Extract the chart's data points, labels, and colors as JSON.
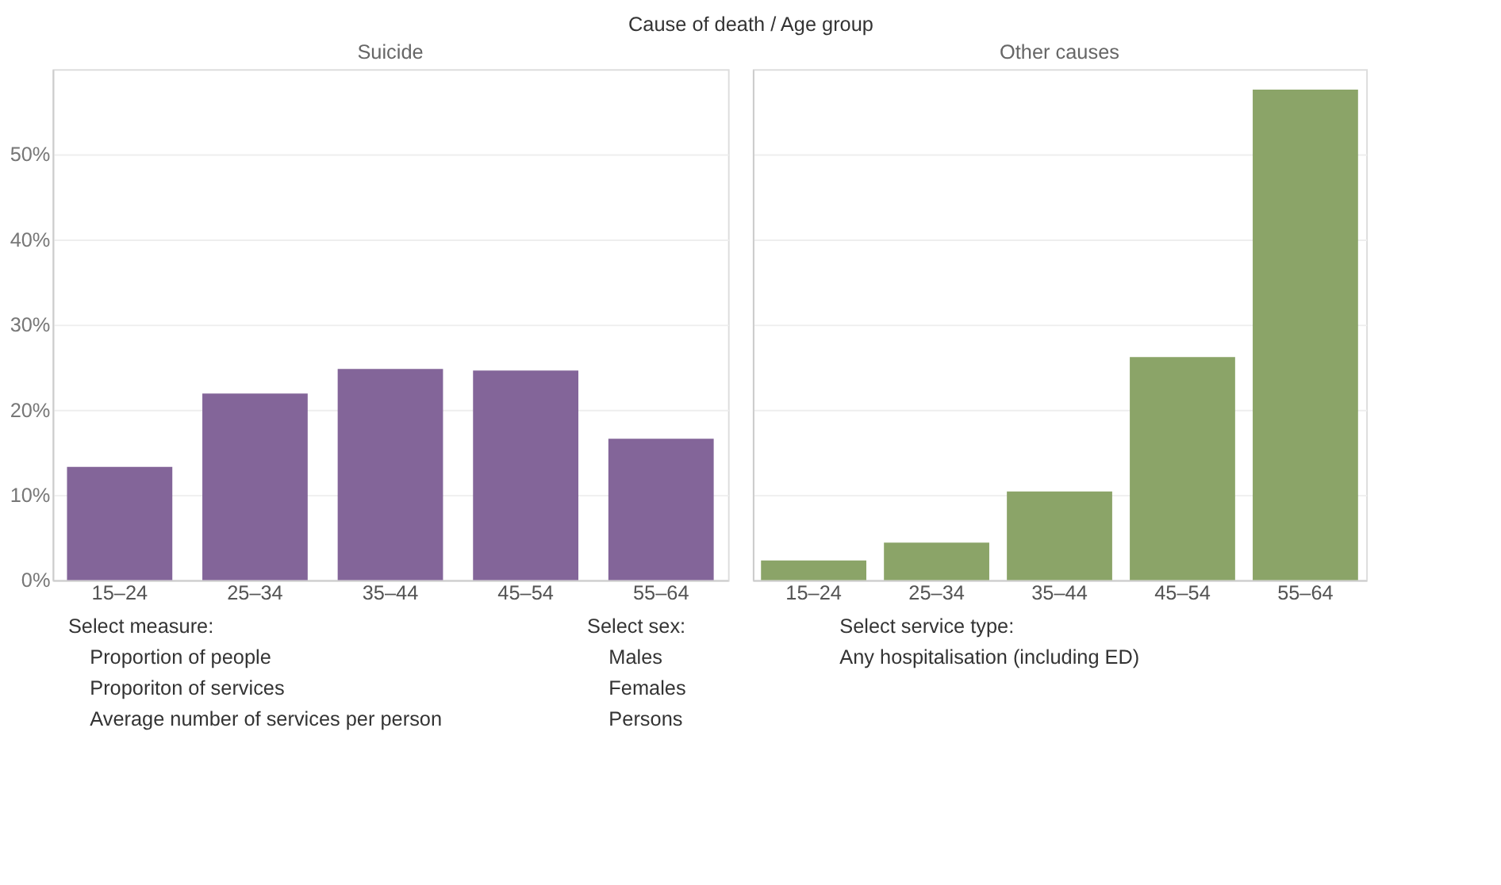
{
  "chart_data": [
    {
      "type": "bar",
      "title": "Suicide",
      "categories": [
        "15–24",
        "25–34",
        "35–44",
        "45–54",
        "55–64"
      ],
      "values": [
        13.3,
        21.9,
        24.8,
        24.6,
        16.6
      ],
      "color": "#836599",
      "ylim": [
        0,
        60
      ],
      "yticks": [
        {
          "value": 0,
          "label": "0%"
        },
        {
          "value": 10,
          "label": "10%"
        },
        {
          "value": 20,
          "label": "20%"
        },
        {
          "value": 30,
          "label": "30%"
        },
        {
          "value": 40,
          "label": "40%"
        },
        {
          "value": 50,
          "label": "50%"
        }
      ],
      "grid": "y",
      "annotations": [
        "Cause of death / Age group",
        "Select measure:",
        "Proportion of people",
        "Proporiton of services",
        "Average number of services per person",
        "Select sex:",
        "Males",
        "Females",
        "Persons",
        "Select service type:",
        "Any hospitalisation (including ED)"
      ]
    },
    {
      "type": "bar",
      "title": "Other causes",
      "categories": [
        "15–24",
        "25–34",
        "35–44",
        "45–54",
        "55–64"
      ],
      "values": [
        2.3,
        4.4,
        10.4,
        26.2,
        57.6
      ],
      "color": "#8ba468",
      "ylim": [
        0,
        60
      ],
      "yticks": [
        {
          "value": 0,
          "label": null
        },
        {
          "value": 10,
          "label": null
        },
        {
          "value": 20,
          "label": null
        },
        {
          "value": 30,
          "label": null
        },
        {
          "value": 40,
          "label": null
        },
        {
          "value": 50,
          "label": null
        }
      ],
      "grid": "y",
      "tick_labels": "x"
    }
  ]
}
